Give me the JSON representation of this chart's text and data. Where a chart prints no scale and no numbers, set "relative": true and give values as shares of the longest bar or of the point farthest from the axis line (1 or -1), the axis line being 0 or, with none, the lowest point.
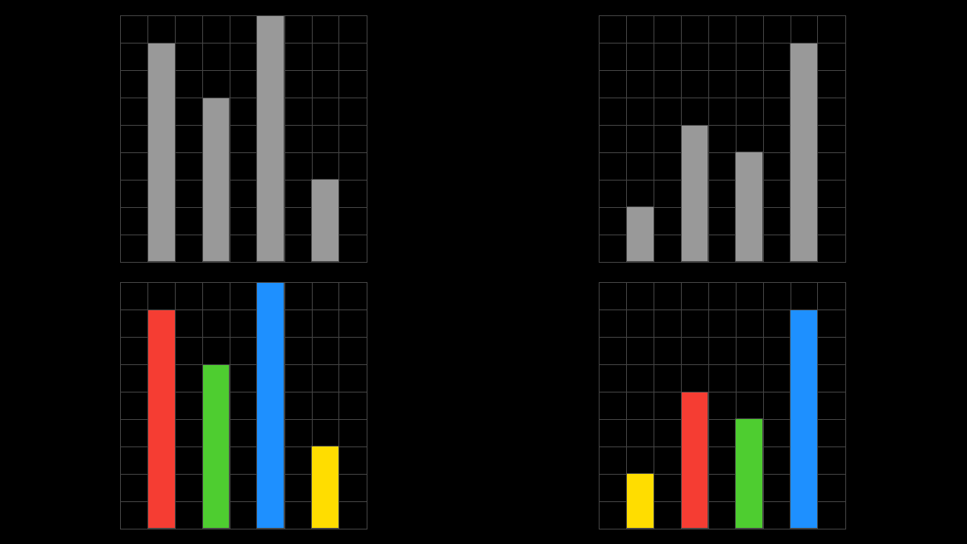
{
  "chart_data": [
    {
      "type": "bar",
      "categories": [
        null,
        null,
        null,
        null
      ],
      "values": [
        0.889,
        0.667,
        1,
        0.333
      ],
      "color": "#999999",
      "relative": true,
      "grid": true
    },
    {
      "type": "bar",
      "categories": [
        null,
        null,
        null,
        null
      ],
      "values": [
        0.25,
        0.625,
        0.5,
        1
      ],
      "color": "#999999",
      "relative": true,
      "grid": true
    },
    {
      "type": "bar",
      "categories": [
        null,
        null,
        null,
        null
      ],
      "values": [
        0.889,
        0.667,
        1,
        0.333
      ],
      "colors": [
        "#f53d33",
        "#4ecd30",
        "#1e90ff",
        "#ffdd00"
      ],
      "relative": true,
      "grid": true
    },
    {
      "type": "bar",
      "categories": [
        null,
        null,
        null,
        null
      ],
      "values": [
        0.25,
        0.625,
        0.5,
        1
      ],
      "colors": [
        "#ffdd00",
        "#f53d33",
        "#4ecd30",
        "#1e90ff"
      ],
      "relative": true,
      "grid": true
    }
  ]
}
